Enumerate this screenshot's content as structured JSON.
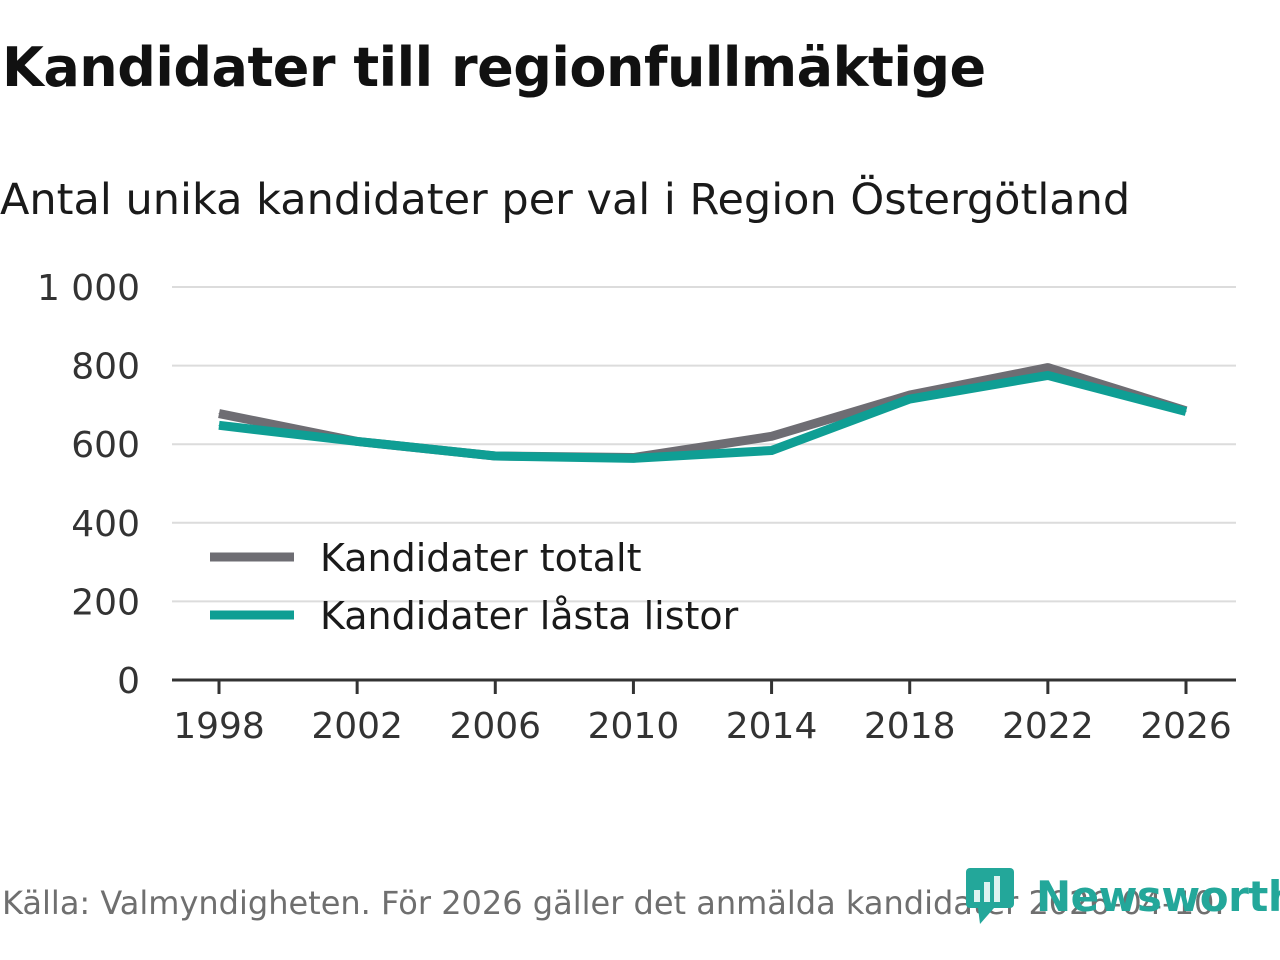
{
  "title": "Kandidater till regionfullmäktige",
  "subtitle": "Antal unika kandidater per val i Region Östergötland",
  "source": "Källa: Valmyndigheten. För 2026 gäller det anmälda kandidater 2026-04-10.",
  "brand": {
    "name": "Newsworthy",
    "color": "#23a79a"
  },
  "chart_data": {
    "type": "line",
    "x": [
      1998,
      2002,
      2006,
      2010,
      2014,
      2018,
      2022,
      2026
    ],
    "x_tick_labels": [
      "1998",
      "2002",
      "2006",
      "2010",
      "2014",
      "2018",
      "2022",
      "2026"
    ],
    "y_ticks": [
      0,
      200,
      400,
      600,
      800,
      1000
    ],
    "y_tick_labels": [
      "0",
      "200",
      "400",
      "600",
      "800",
      "1 000"
    ],
    "ylim": [
      0,
      1000
    ],
    "grid": true,
    "legend_position": "lower-left",
    "series": [
      {
        "name": "Kandidater totalt",
        "color": "#6e6d73",
        "values": [
          678,
          607,
          570,
          566,
          620,
          725,
          795,
          685
        ]
      },
      {
        "name": "Kandidater låsta listor",
        "color": "#0f9e94",
        "values": [
          648,
          607,
          570,
          564,
          584,
          715,
          775,
          683
        ]
      }
    ]
  }
}
